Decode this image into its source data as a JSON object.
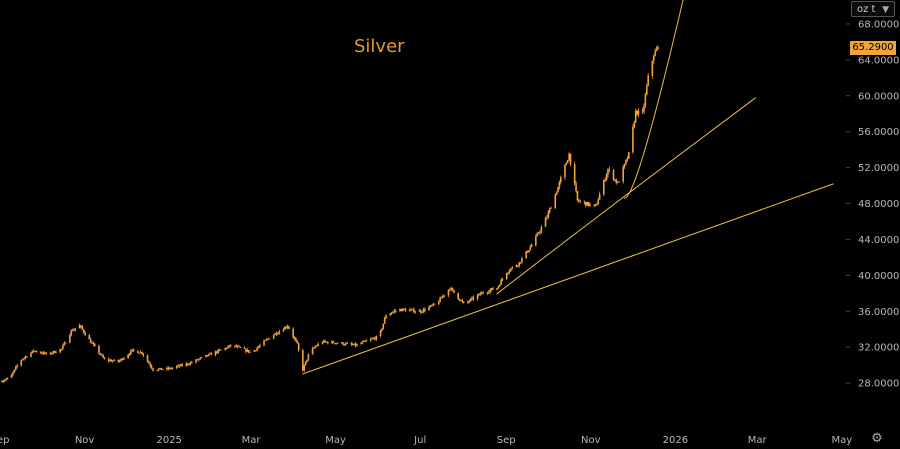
{
  "chart_data": {
    "type": "candlestick",
    "title": "Silver",
    "unit_selector": "oz t",
    "last_price_label": "65.2900",
    "last_price": 65.29,
    "ylim": [
      24,
      70
    ],
    "y_ticks": [
      {
        "value": 68,
        "label": "68.0000"
      },
      {
        "value": 64,
        "label": "64.0000"
      },
      {
        "value": 60,
        "label": "60.0000"
      },
      {
        "value": 56,
        "label": "56.0000"
      },
      {
        "value": 52,
        "label": "52.0000"
      },
      {
        "value": 48,
        "label": "48.0000"
      },
      {
        "value": 44,
        "label": "44.0000"
      },
      {
        "value": 40,
        "label": "40.0000"
      },
      {
        "value": 36,
        "label": "36.0000"
      },
      {
        "value": 32,
        "label": "32.0000"
      },
      {
        "value": 28,
        "label": "28.0000"
      }
    ],
    "x_ticks": [
      {
        "date": "2024-09-01",
        "label": "Sep"
      },
      {
        "date": "2024-11-01",
        "label": "Nov"
      },
      {
        "date": "2025-01-01",
        "label": "2025"
      },
      {
        "date": "2025-03-01",
        "label": "Mar"
      },
      {
        "date": "2025-05-01",
        "label": "May"
      },
      {
        "date": "2025-07-01",
        "label": "Jul"
      },
      {
        "date": "2025-09-01",
        "label": "Sep"
      },
      {
        "date": "2025-11-01",
        "label": "Nov"
      },
      {
        "date": "2026-01-01",
        "label": "2026"
      },
      {
        "date": "2026-03-01",
        "label": "Mar"
      },
      {
        "date": "2026-05-01",
        "label": "May"
      }
    ],
    "xlim": [
      "2024-09-01",
      "2026-05-04"
    ],
    "price_path": [
      [
        "2024-09-01",
        28.2
      ],
      [
        "2024-09-08",
        28.6
      ],
      [
        "2024-09-15",
        30.5
      ],
      [
        "2024-09-25",
        31.6
      ],
      [
        "2024-10-05",
        31.2
      ],
      [
        "2024-10-15",
        31.8
      ],
      [
        "2024-10-22",
        33.8
      ],
      [
        "2024-10-28",
        34.4
      ],
      [
        "2024-11-05",
        32.6
      ],
      [
        "2024-11-15",
        30.6
      ],
      [
        "2024-11-25",
        30.4
      ],
      [
        "2024-12-05",
        31.6
      ],
      [
        "2024-12-12",
        31.4
      ],
      [
        "2024-12-20",
        29.5
      ],
      [
        "2025-01-01",
        29.6
      ],
      [
        "2025-01-15",
        30.2
      ],
      [
        "2025-02-01",
        31.3
      ],
      [
        "2025-02-15",
        32.2
      ],
      [
        "2025-03-01",
        31.4
      ],
      [
        "2025-03-15",
        33.2
      ],
      [
        "2025-03-27",
        34.4
      ],
      [
        "2025-04-03",
        32.3
      ],
      [
        "2025-04-07",
        29.5
      ],
      [
        "2025-04-12",
        31.5
      ],
      [
        "2025-04-20",
        32.6
      ],
      [
        "2025-05-01",
        32.5
      ],
      [
        "2025-05-15",
        32.2
      ],
      [
        "2025-06-01",
        33.2
      ],
      [
        "2025-06-06",
        35.6
      ],
      [
        "2025-06-15",
        36.2
      ],
      [
        "2025-07-01",
        36.0
      ],
      [
        "2025-07-12",
        36.8
      ],
      [
        "2025-07-22",
        38.6
      ],
      [
        "2025-08-01",
        36.8
      ],
      [
        "2025-08-15",
        38.1
      ],
      [
        "2025-08-25",
        38.6
      ],
      [
        "2025-09-01",
        40.4
      ],
      [
        "2025-09-10",
        41.4
      ],
      [
        "2025-09-20",
        43.6
      ],
      [
        "2025-09-30",
        46.5
      ],
      [
        "2025-10-08",
        49.8
      ],
      [
        "2025-10-16",
        53.5
      ],
      [
        "2025-10-22",
        48.3
      ],
      [
        "2025-10-28",
        48.0
      ],
      [
        "2025-11-04",
        47.6
      ],
      [
        "2025-11-13",
        51.8
      ],
      [
        "2025-11-20",
        50.2
      ],
      [
        "2025-11-28",
        53.5
      ],
      [
        "2025-12-03",
        58.2
      ],
      [
        "2025-12-08",
        58.0
      ],
      [
        "2025-12-12",
        62.0
      ],
      [
        "2025-12-16",
        64.6
      ],
      [
        "2025-12-19",
        65.3
      ]
    ],
    "trendlines": [
      {
        "points": [
          [
            "2025-04-07",
            29.0
          ],
          [
            "2025-08-05",
            35.7
          ],
          [
            "2026-04-25",
            50.2
          ]
        ]
      },
      {
        "points": [
          [
            "2025-08-25",
            37.9
          ],
          [
            "2025-11-15",
            47.6
          ],
          [
            "2026-02-28",
            59.8
          ]
        ]
      },
      {
        "points": [
          [
            "2025-11-25",
            48.6
          ],
          [
            "2025-12-10",
            54.0
          ],
          [
            "2026-01-07",
            71.0
          ]
        ]
      }
    ],
    "colors": {
      "candle": "#f2a33a",
      "trendline": "#e8c23a",
      "background": "#000000",
      "title": "#e89a2a",
      "price_tag": "#f2a33a"
    }
  }
}
